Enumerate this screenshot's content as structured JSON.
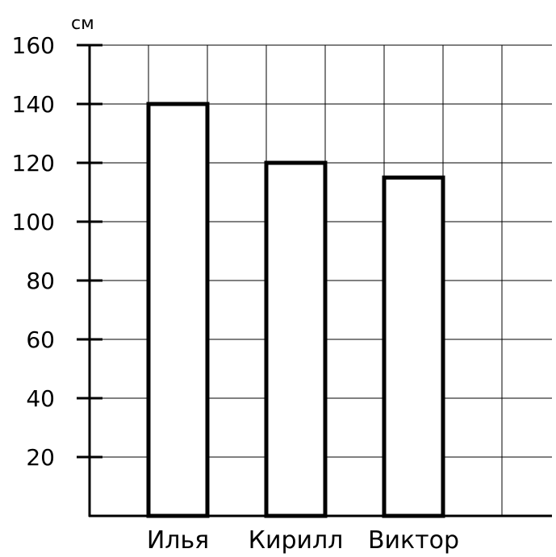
{
  "chart_data": {
    "type": "bar",
    "categories": [
      "Илья",
      "Кирилл",
      "Виктор"
    ],
    "values": [
      140,
      120,
      115
    ],
    "ylabel": "см",
    "ylim": [
      0,
      160
    ],
    "yticks": [
      "20",
      "40",
      "60",
      "80",
      "100",
      "120",
      "140",
      "160"
    ],
    "grid": true,
    "bar_fill": "#ffffff",
    "bar_stroke": "#000000"
  }
}
